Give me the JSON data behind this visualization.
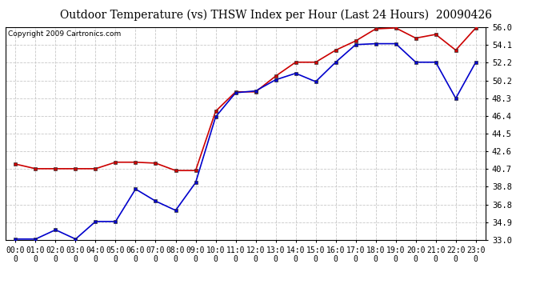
{
  "title": "Outdoor Temperature (vs) THSW Index per Hour (Last 24 Hours)  20090426",
  "copyright": "Copyright 2009 Cartronics.com",
  "x_labels": [
    "00:00",
    "01:00",
    "02:00",
    "03:00",
    "04:00",
    "05:00",
    "06:00",
    "07:00",
    "08:00",
    "09:00",
    "10:00",
    "11:00",
    "12:00",
    "13:00",
    "14:00",
    "15:00",
    "16:00",
    "17:00",
    "18:00",
    "19:00",
    "20:00",
    "21:00",
    "22:00",
    "23:00"
  ],
  "y_ticks": [
    33.0,
    34.9,
    36.8,
    38.8,
    40.7,
    42.6,
    44.5,
    46.4,
    48.3,
    50.2,
    52.2,
    54.1,
    56.0
  ],
  "y_min": 33.0,
  "y_max": 56.0,
  "red_data": [
    41.2,
    40.7,
    40.7,
    40.7,
    40.7,
    41.4,
    41.4,
    41.3,
    40.5,
    40.5,
    46.9,
    49.0,
    49.0,
    50.7,
    52.2,
    52.2,
    53.5,
    54.5,
    55.8,
    55.9,
    54.8,
    55.2,
    53.5,
    55.9
  ],
  "blue_data": [
    33.1,
    33.1,
    34.1,
    33.1,
    35.0,
    35.0,
    38.5,
    37.2,
    36.2,
    39.2,
    46.3,
    48.9,
    49.1,
    50.3,
    51.0,
    50.1,
    52.2,
    54.1,
    54.2,
    54.2,
    52.2,
    52.2,
    48.3,
    52.2
  ],
  "red_color": "#cc0000",
  "blue_color": "#0000cc",
  "bg_color": "#ffffff",
  "grid_color": "#c8c8c8",
  "title_fontsize": 10,
  "copyright_fontsize": 6.5,
  "tick_fontsize": 7.5,
  "x_tick_fontsize": 7
}
